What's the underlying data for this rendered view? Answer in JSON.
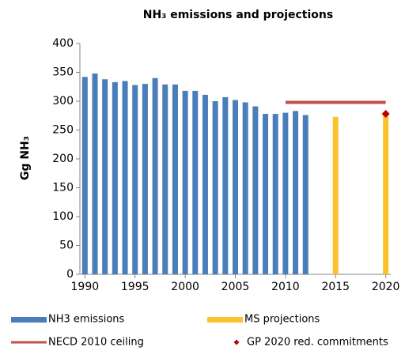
{
  "chart_data": {
    "type": "bar",
    "title": "NH₃ emissions and projections",
    "y_label": "Gg NH₃",
    "xlim": [
      1989.5,
      2020.5
    ],
    "xticks": [
      1990,
      1995,
      2000,
      2005,
      2010,
      2015,
      2020
    ],
    "ylim": [
      0,
      400
    ],
    "yticks": [
      0,
      50,
      100,
      150,
      200,
      250,
      300,
      350,
      400
    ],
    "grid": false,
    "legend": "bottom",
    "series": [
      {
        "name": "NH3 emissions",
        "type": "bar",
        "color": "#4a7ebb",
        "x": [
          1990,
          1991,
          1992,
          1993,
          1994,
          1995,
          1996,
          1997,
          1998,
          1999,
          2000,
          2001,
          2002,
          2003,
          2004,
          2005,
          2006,
          2007,
          2008,
          2009,
          2010,
          2011,
          2012
        ],
        "values": [
          342,
          348,
          338,
          333,
          335,
          328,
          330,
          340,
          329,
          329,
          318,
          318,
          311,
          300,
          307,
          302,
          298,
          291,
          278,
          278,
          280,
          283,
          276
        ]
      },
      {
        "name": "MS projections",
        "type": "bar",
        "color": "#fcc22c",
        "x": [
          2015,
          2020
        ],
        "values": [
          273,
          279
        ]
      },
      {
        "name": "NECD 2010 ceiling",
        "type": "line",
        "color": "#c0504d",
        "x": [
          2010,
          2020
        ],
        "values": [
          298,
          298
        ]
      },
      {
        "name": "GP 2020 red. commitments",
        "type": "scatter",
        "color": "#c00000",
        "x": [
          2020
        ],
        "values": [
          278
        ]
      }
    ]
  }
}
